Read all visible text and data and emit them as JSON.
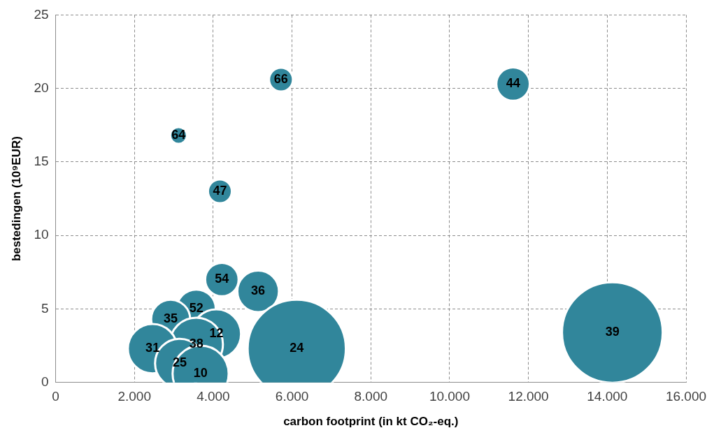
{
  "chart_data": {
    "type": "bubble",
    "xlabel": "carbon footprint (in kt CO₂-eq.)",
    "ylabel": "bestedingen (10⁹EUR)",
    "x": [
      5720,
      11610,
      3120,
      4170,
      4220,
      5140,
      3570,
      2920,
      4080,
      3570,
      2460,
      3150,
      3680,
      6120,
      14130
    ],
    "values": [
      20.6,
      20.3,
      16.8,
      13.0,
      7.0,
      6.2,
      5.0,
      4.3,
      3.3,
      2.6,
      2.3,
      1.3,
      0.6,
      2.3,
      3.4
    ],
    "sizes": [
      0.056,
      0.11,
      0.028,
      0.056,
      0.11,
      0.17,
      0.15,
      0.15,
      0.24,
      0.28,
      0.24,
      0.24,
      0.31,
      0.95,
      1
    ],
    "annotations": [
      {
        "text": "66",
        "x": 5720,
        "y": 20.6
      },
      {
        "text": "44",
        "x": 11610,
        "y": 20.3
      },
      {
        "text": "64",
        "x": 3120,
        "y": 16.8
      },
      {
        "text": "47",
        "x": 4170,
        "y": 13.0
      },
      {
        "text": "54",
        "x": 4220,
        "y": 7.0
      },
      {
        "text": "36",
        "x": 5140,
        "y": 6.2
      },
      {
        "text": "52",
        "x": 3570,
        "y": 5.0
      },
      {
        "text": "35",
        "x": 2920,
        "y": 4.3
      },
      {
        "text": "12",
        "x": 4080,
        "y": 3.3
      },
      {
        "text": "38",
        "x": 3570,
        "y": 2.6
      },
      {
        "text": "31",
        "x": 2460,
        "y": 2.3
      },
      {
        "text": "25",
        "x": 3150,
        "y": 1.3
      },
      {
        "text": "10",
        "x": 3680,
        "y": 0.6
      },
      {
        "text": "24",
        "x": 6120,
        "y": 2.3
      },
      {
        "text": "39",
        "x": 14130,
        "y": 3.4
      }
    ],
    "color": "#31869b",
    "xlim": [
      0,
      16000
    ],
    "xticks": [
      0,
      {
        "value": 2000,
        "label": "2.000"
      },
      {
        "value": 4000,
        "label": "4.000"
      },
      {
        "value": 6000,
        "label": "6.000"
      },
      {
        "value": 8000,
        "label": "8.000"
      },
      {
        "value": 10000,
        "label": "10.000"
      },
      {
        "value": 12000,
        "label": "12.000"
      },
      {
        "value": 14000,
        "label": "14.000"
      },
      {
        "value": 16000,
        "label": "16.000"
      }
    ],
    "ylim": [
      0,
      25
    ],
    "yticks": [
      0,
      5,
      10,
      15,
      20,
      25
    ],
    "grid": true
  }
}
